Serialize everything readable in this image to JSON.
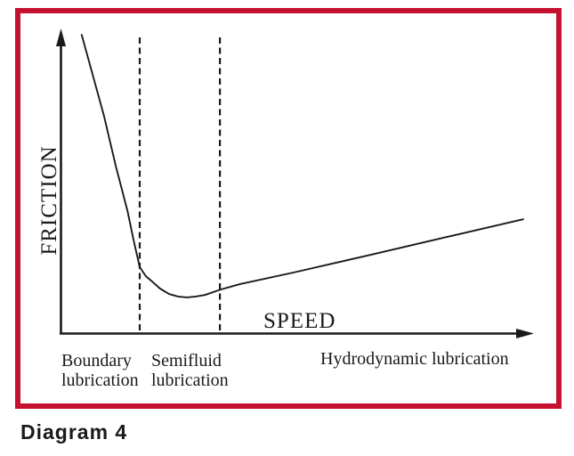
{
  "colors": {
    "frame_red": "#C51230",
    "ink": "#1A1A1A"
  },
  "diagram": {
    "caption": "Diagram 4",
    "y_axis_label": "FRICTION",
    "x_axis_label": "SPEED",
    "regions": [
      {
        "name": "boundary",
        "line1": "Boundary",
        "line2": "lubrication"
      },
      {
        "name": "semifluid",
        "line1": "Semifluid",
        "line2": "lubrication"
      },
      {
        "name": "hydrodynamic",
        "line1": "Hydrodynamic lubrication",
        "line2": ""
      }
    ]
  },
  "chart_data": {
    "type": "line",
    "title": "",
    "xlabel": "SPEED",
    "ylabel": "FRICTION",
    "x_axis_numeric": false,
    "y_axis_numeric": false,
    "xlim": [
      0,
      1
    ],
    "ylim": [
      0,
      1
    ],
    "grid": false,
    "legend": "none",
    "description": "Qualitative friction vs speed curve (Stribeck curve): friction drops steeply in the boundary lubrication zone, reaches a minimum in the semifluid lubrication zone, then rises gently through the hydrodynamic lubrication zone.",
    "series": [
      {
        "name": "friction-vs-speed",
        "x": [
          0.045,
          0.092,
          0.117,
          0.142,
          0.155,
          0.168,
          0.181,
          0.196,
          0.211,
          0.23,
          0.249,
          0.268,
          0.287,
          0.306,
          0.34,
          0.381,
          0.494,
          0.664,
          0.815,
          0.981
        ],
        "y": [
          0.985,
          0.718,
          0.553,
          0.403,
          0.306,
          0.218,
          0.188,
          0.168,
          0.147,
          0.129,
          0.121,
          0.118,
          0.121,
          0.126,
          0.144,
          0.162,
          0.2,
          0.261,
          0.316,
          0.376
        ]
      }
    ],
    "region_dividers_x": [
      0.168,
      0.338
    ],
    "regions": [
      "Boundary lubrication",
      "Semifluid lubrication",
      "Hydrodynamic lubrication"
    ]
  }
}
